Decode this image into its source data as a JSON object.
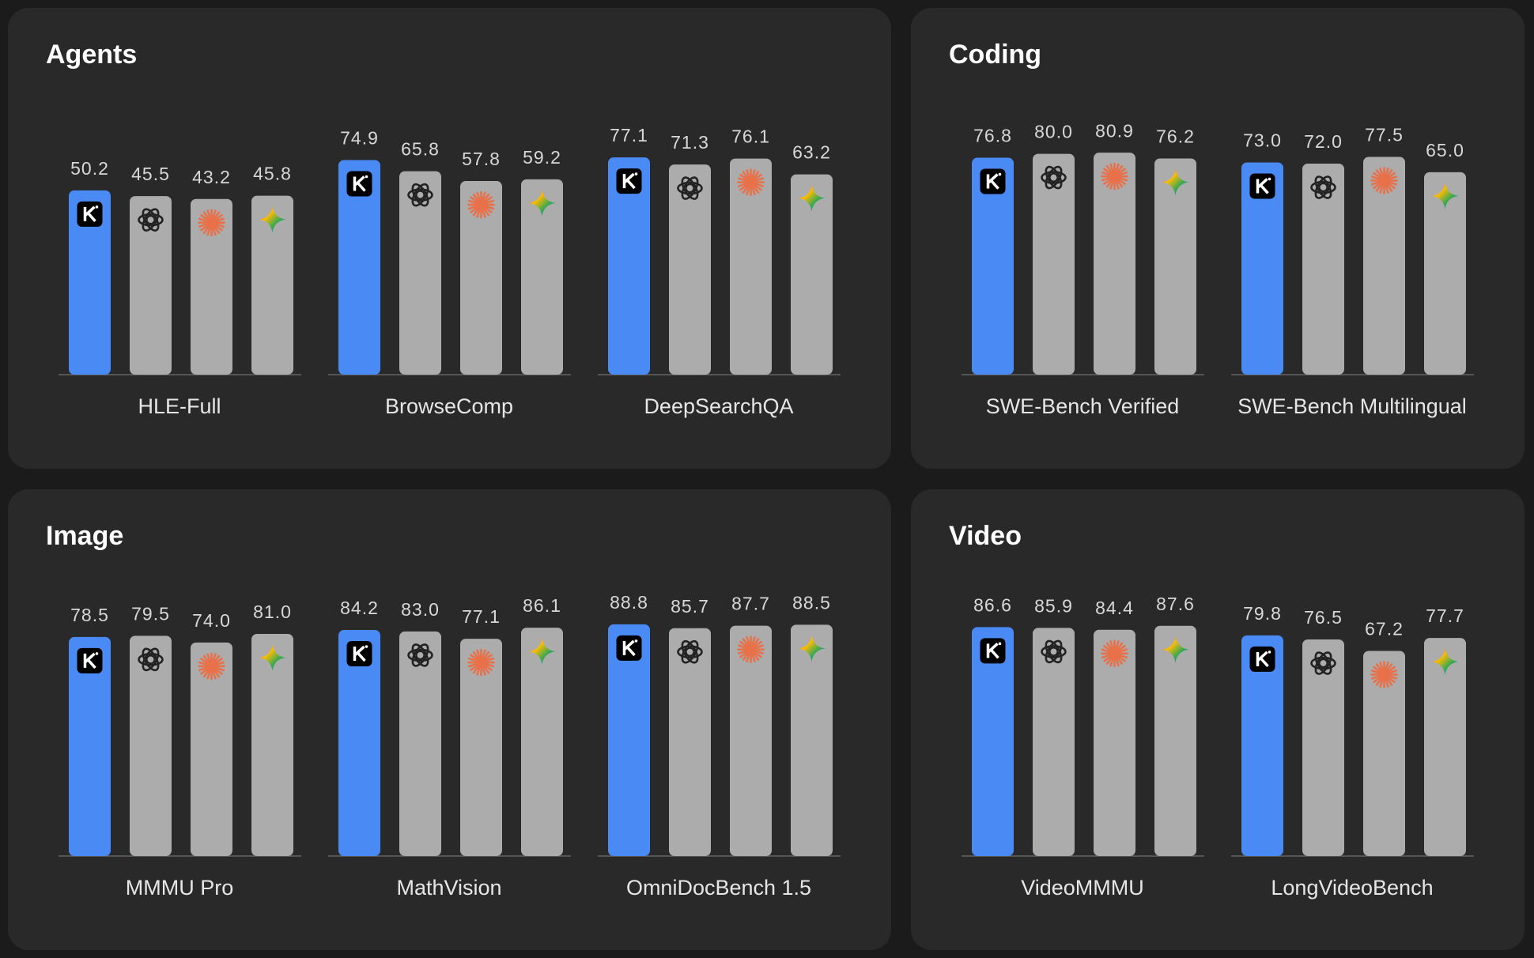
{
  "chart_data": [
    {
      "type": "bar",
      "title": "Agents",
      "categories": [
        "HLE-Full",
        "BrowseComp",
        "DeepSearchQA"
      ],
      "ylim": [
        -100,
        110
      ],
      "series": [
        {
          "color": "#4a8af4",
          "values": [
            50.2,
            74.9,
            77.1
          ],
          "value_labels": [
            "50.2",
            "74.9",
            "77.1"
          ]
        },
        {
          "color": "#acacac",
          "values": [
            45.5,
            65.8,
            71.3
          ],
          "value_labels": [
            "45.5",
            "65.8",
            "71.3"
          ]
        },
        {
          "color": "#acacac",
          "values": [
            43.2,
            57.8,
            76.1
          ],
          "value_labels": [
            "43.2",
            "57.8",
            "76.1"
          ]
        },
        {
          "color": "#acacac",
          "values": [
            45.8,
            59.2,
            63.2
          ],
          "value_labels": [
            "45.8",
            "59.2",
            "63.2"
          ]
        }
      ]
    },
    {
      "type": "bar",
      "title": "Coding",
      "categories": [
        "SWE-Bench Verified",
        "SWE-Bench Multilingual"
      ],
      "ylim": [
        -100,
        110
      ],
      "series": [
        {
          "color": "#4a8af4",
          "values": [
            76.8,
            73.0
          ],
          "value_labels": [
            "76.8",
            "73.0"
          ]
        },
        {
          "color": "#acacac",
          "values": [
            80.0,
            72.0
          ],
          "value_labels": [
            "80.0",
            "72.0"
          ]
        },
        {
          "color": "#acacac",
          "values": [
            80.9,
            77.5
          ],
          "value_labels": [
            "80.9",
            "77.5"
          ]
        },
        {
          "color": "#acacac",
          "values": [
            76.2,
            65.0
          ],
          "value_labels": [
            "76.2",
            "65.0"
          ]
        }
      ]
    },
    {
      "type": "bar",
      "title": "Image",
      "categories": [
        "MMMU Pro",
        "MathVision",
        "OmniDocBench 1.5"
      ],
      "ylim": [
        -100,
        110
      ],
      "series": [
        {
          "color": "#4a8af4",
          "values": [
            78.5,
            84.2,
            88.8
          ],
          "value_labels": [
            "78.5",
            "84.2",
            "88.8"
          ]
        },
        {
          "color": "#acacac",
          "values": [
            79.5,
            83.0,
            85.7
          ],
          "value_labels": [
            "79.5",
            "83.0",
            "85.7"
          ]
        },
        {
          "color": "#acacac",
          "values": [
            74.0,
            77.1,
            87.7
          ],
          "value_labels": [
            "74.0",
            "77.1",
            "87.7"
          ]
        },
        {
          "color": "#acacac",
          "values": [
            81.0,
            86.1,
            88.5
          ],
          "value_labels": [
            "81.0",
            "86.1",
            "88.5"
          ]
        }
      ]
    },
    {
      "type": "bar",
      "title": "Video",
      "categories": [
        "VideoMMMU",
        "LongVideoBench"
      ],
      "ylim": [
        -100,
        110
      ],
      "series": [
        {
          "color": "#4a8af4",
          "values": [
            86.6,
            79.8
          ],
          "value_labels": [
            "86.6",
            "79.8"
          ]
        },
        {
          "color": "#acacac",
          "values": [
            85.9,
            76.5
          ],
          "value_labels": [
            "85.9",
            "76.5"
          ]
        },
        {
          "color": "#acacac",
          "values": [
            84.4,
            67.2
          ],
          "value_labels": [
            "84.4",
            "67.2"
          ]
        },
        {
          "color": "#acacac",
          "values": [
            87.6,
            77.7
          ],
          "value_labels": [
            "87.6",
            "77.7"
          ]
        }
      ]
    }
  ]
}
